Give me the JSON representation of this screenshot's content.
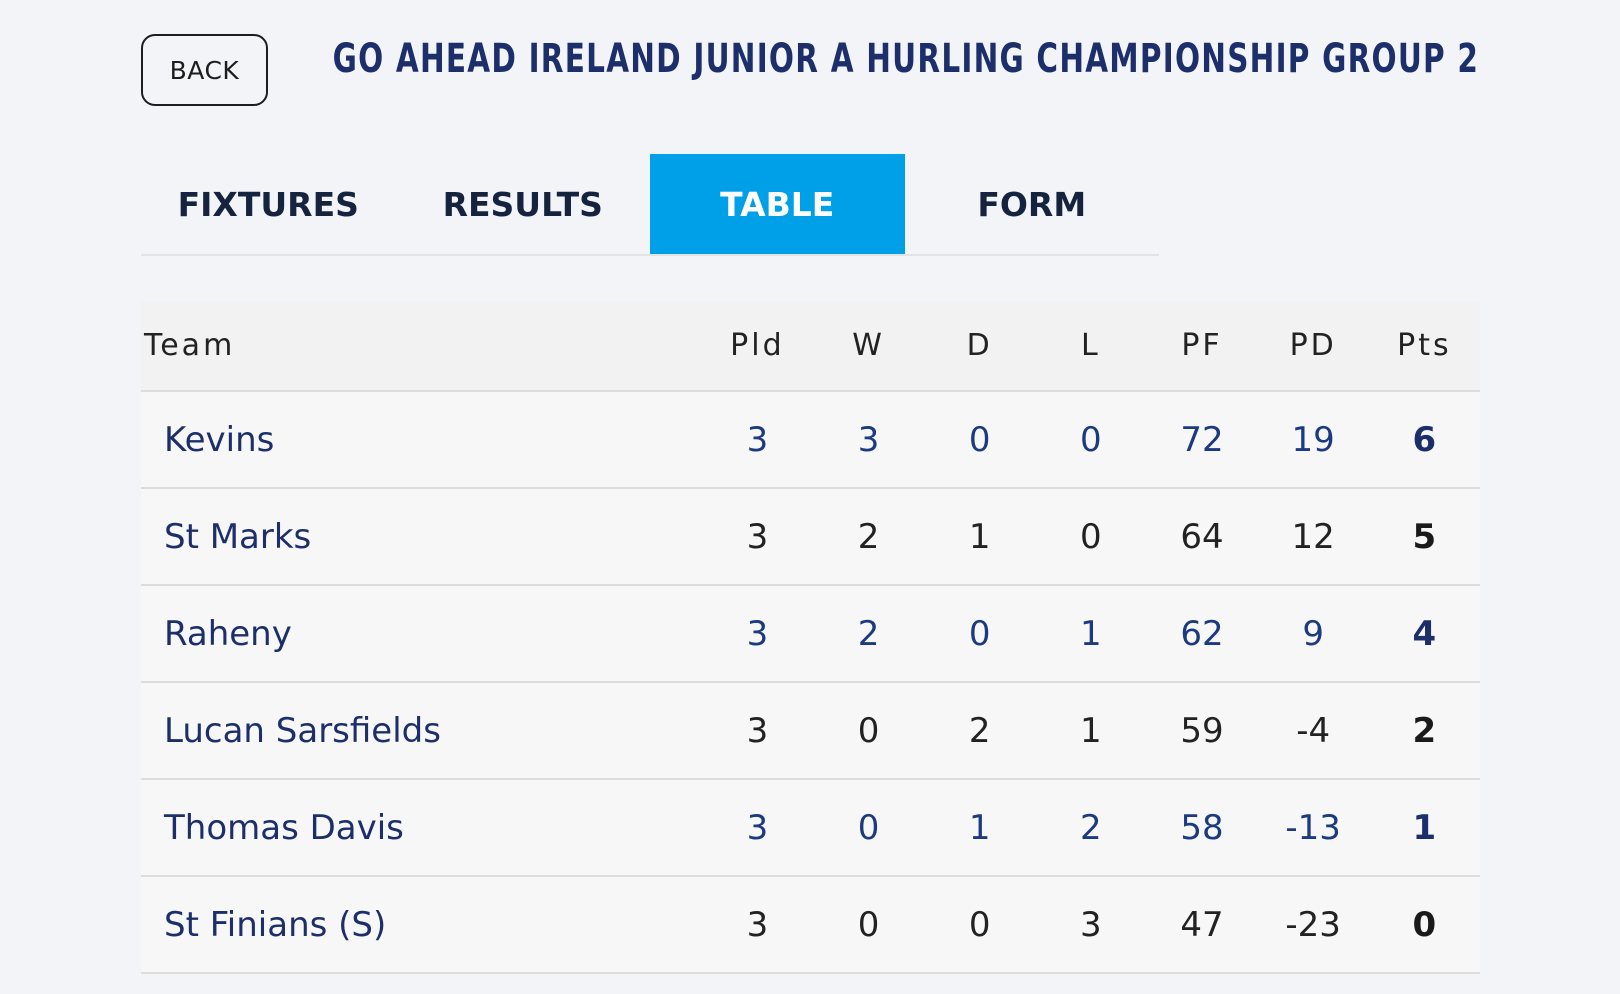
{
  "header": {
    "back_label": "BACK",
    "title": "GO AHEAD IRELAND JUNIOR A HURLING CHAMPIONSHIP GROUP 2"
  },
  "tabs": [
    {
      "label": "FIXTURES",
      "active": false
    },
    {
      "label": "RESULTS",
      "active": false
    },
    {
      "label": "TABLE",
      "active": true
    },
    {
      "label": "FORM",
      "active": false
    }
  ],
  "colors": {
    "accent": "#00a0e9",
    "title": "#1c2f6b",
    "background": "#f3f4f8"
  },
  "table": {
    "headers": [
      "Team",
      "Pld",
      "W",
      "D",
      "L",
      "PF",
      "PD",
      "Pts"
    ],
    "rows": [
      {
        "team": "Kevins",
        "pld": "3",
        "w": "3",
        "d": "0",
        "l": "0",
        "pf": "72",
        "pd": "19",
        "pts": "6"
      },
      {
        "team": "St Marks",
        "pld": "3",
        "w": "2",
        "d": "1",
        "l": "0",
        "pf": "64",
        "pd": "12",
        "pts": "5"
      },
      {
        "team": "Raheny",
        "pld": "3",
        "w": "2",
        "d": "0",
        "l": "1",
        "pf": "62",
        "pd": "9",
        "pts": "4"
      },
      {
        "team": "Lucan Sarsfields",
        "pld": "3",
        "w": "0",
        "d": "2",
        "l": "1",
        "pf": "59",
        "pd": "-4",
        "pts": "2"
      },
      {
        "team": "Thomas Davis",
        "pld": "3",
        "w": "0",
        "d": "1",
        "l": "2",
        "pf": "58",
        "pd": "-13",
        "pts": "1"
      },
      {
        "team": "St Finians (S)",
        "pld": "3",
        "w": "0",
        "d": "0",
        "l": "3",
        "pf": "47",
        "pd": "-23",
        "pts": "0"
      }
    ]
  }
}
